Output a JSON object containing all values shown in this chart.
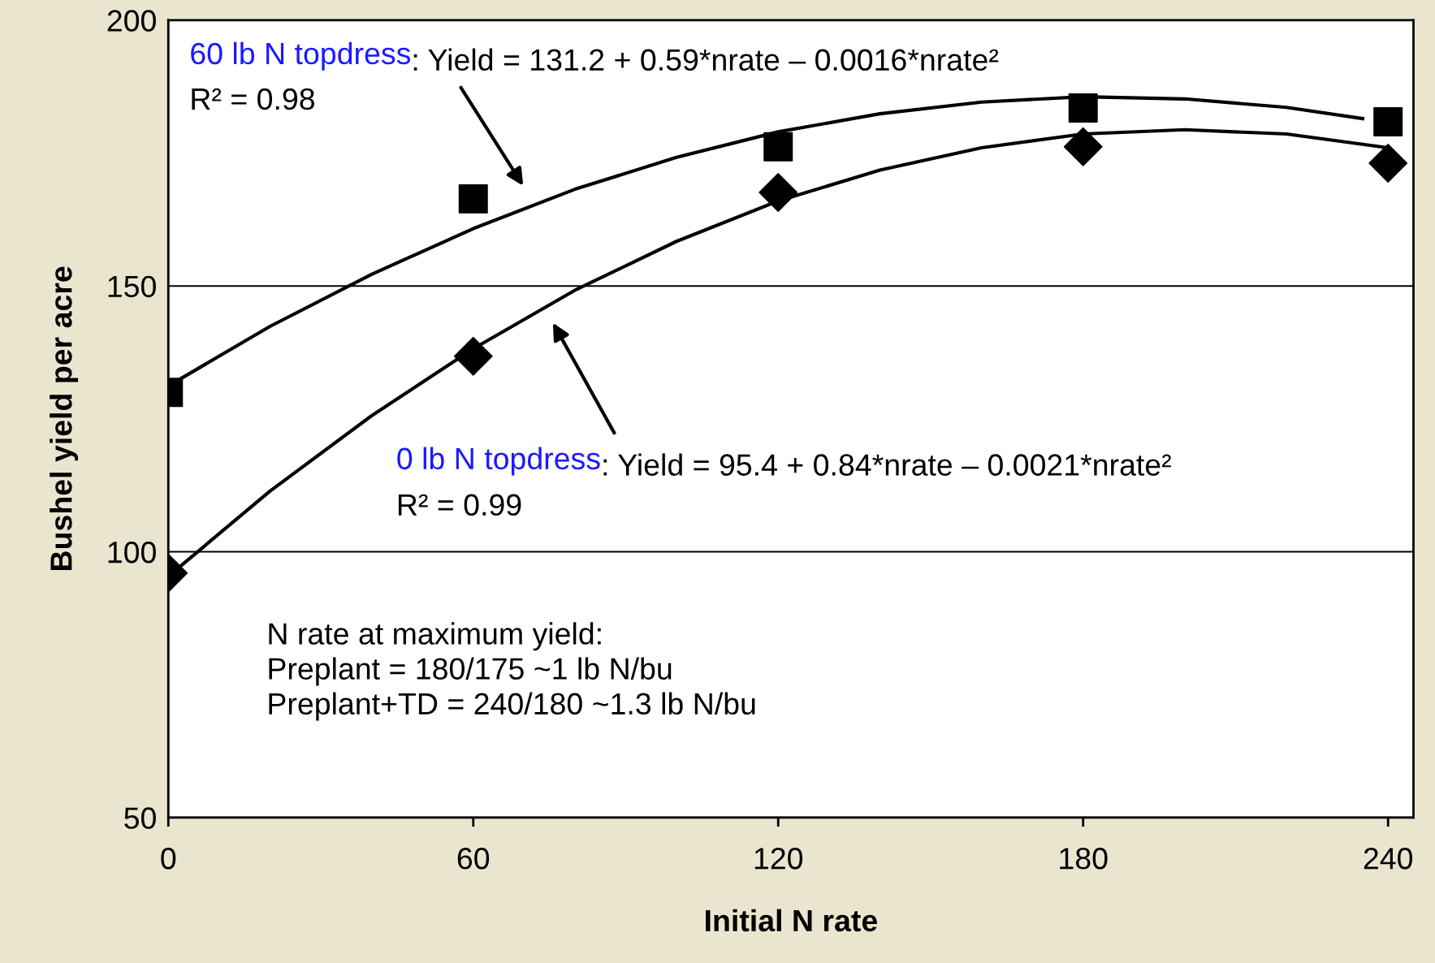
{
  "chart_data": {
    "type": "scatter",
    "xlabel": "Initial N rate",
    "ylabel": "Bushel yield per acre",
    "xlim": [
      0,
      245
    ],
    "xticks": [
      0,
      60,
      120,
      180,
      240
    ],
    "ylim": [
      50,
      200
    ],
    "yticks": [
      50,
      100,
      150,
      200
    ],
    "grid": "y",
    "legend": false,
    "series": [
      {
        "type": "line",
        "color": "#000000",
        "marker": "none",
        "x": [
          0,
          20,
          40,
          60,
          80,
          100,
          120,
          140,
          160,
          180,
          200,
          220,
          235
        ],
        "values": [
          131.2,
          142.4,
          152.2,
          160.8,
          168.2,
          174.2,
          179.0,
          182.4,
          184.6,
          185.6,
          185.2,
          183.6,
          181.5
        ]
      },
      {
        "color": "#000000",
        "marker": "square",
        "x": [
          0,
          60,
          120,
          180,
          240
        ],
        "values": [
          130,
          166.4,
          176.2,
          183.5,
          180.9
        ]
      },
      {
        "type": "line",
        "color": "#000000",
        "marker": "none",
        "x": [
          0,
          20,
          40,
          60,
          80,
          100,
          120,
          140,
          160,
          180,
          200,
          220,
          240
        ],
        "values": [
          95.4,
          111.4,
          125.6,
          138.2,
          149.2,
          158.4,
          166.0,
          171.8,
          176.0,
          178.6,
          179.4,
          178.6,
          176.0
        ]
      },
      {
        "color": "#000000",
        "marker": "diamond",
        "x": [
          0,
          60,
          120,
          180,
          240
        ],
        "values": [
          96,
          136.8,
          167.6,
          176.2,
          173.1
        ]
      }
    ],
    "annotations": [
      "60 lb N topdress",
      ": Yield = 131.2 + 0.59*nrate – 0.0016*nrate²",
      "R² = 0.98",
      "0 lb N topdress",
      ": Yield = 95.4 + 0.84*nrate – 0.0021*nrate²",
      "R² = 0.99",
      "N rate at maximum yield:\nPreplant = 180/175 ~1 lb N/bu\nPreplant+TD = 240/180 ~1.3 lb N/bu"
    ]
  }
}
